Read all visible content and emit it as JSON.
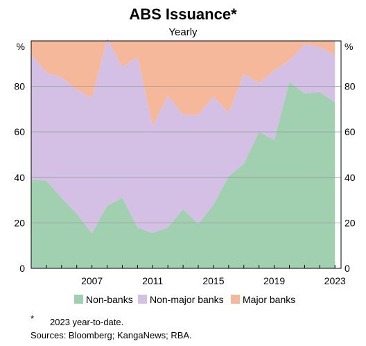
{
  "chart_data": {
    "type": "area",
    "stacked": true,
    "title": "ABS Issuance*",
    "subtitle": "Yearly",
    "y_unit": "%",
    "ylim": [
      0,
      100
    ],
    "xlim": [
      2003,
      2023.4
    ],
    "yticks": [
      0,
      20,
      40,
      60,
      80
    ],
    "xticks": [
      2007,
      2011,
      2015,
      2019,
      2023
    ],
    "grid": true,
    "legend_position": "bottom",
    "x": [
      2003,
      2004,
      2005,
      2006,
      2007,
      2008,
      2009,
      2010,
      2011,
      2012,
      2013,
      2014,
      2015,
      2016,
      2017,
      2018,
      2019,
      2020,
      2021,
      2022,
      2023
    ],
    "series": [
      {
        "name": "Non-banks",
        "color": "#a0d0b0",
        "values": [
          39,
          38.5,
          31,
          24,
          15.5,
          27.5,
          31,
          18,
          15.5,
          18,
          26,
          19.5,
          28,
          40.5,
          46,
          60,
          56.5,
          82,
          77,
          77.5,
          73
        ]
      },
      {
        "name": "Non-major banks",
        "color": "#d4c0e4",
        "values": [
          55,
          47.5,
          53,
          54.5,
          59.5,
          73.5,
          57.5,
          75,
          47,
          58,
          41.5,
          48,
          47.5,
          28,
          39.5,
          21.5,
          30.5,
          9.5,
          21.5,
          20,
          20.5
        ]
      },
      {
        "name": "Major banks",
        "color": "#f6b89a",
        "values": [
          6,
          14,
          16,
          21.5,
          25,
          -1,
          11.5,
          7,
          37.5,
          24,
          32.5,
          32.5,
          24.5,
          31.5,
          14.5,
          18.5,
          13,
          8.5,
          1.5,
          2.5,
          6.5
        ]
      }
    ]
  },
  "notes": {
    "asterisk": "*",
    "footnote": "2023 year-to-date.",
    "sources": "Sources: Bloomberg; KangaNews; RBA."
  }
}
